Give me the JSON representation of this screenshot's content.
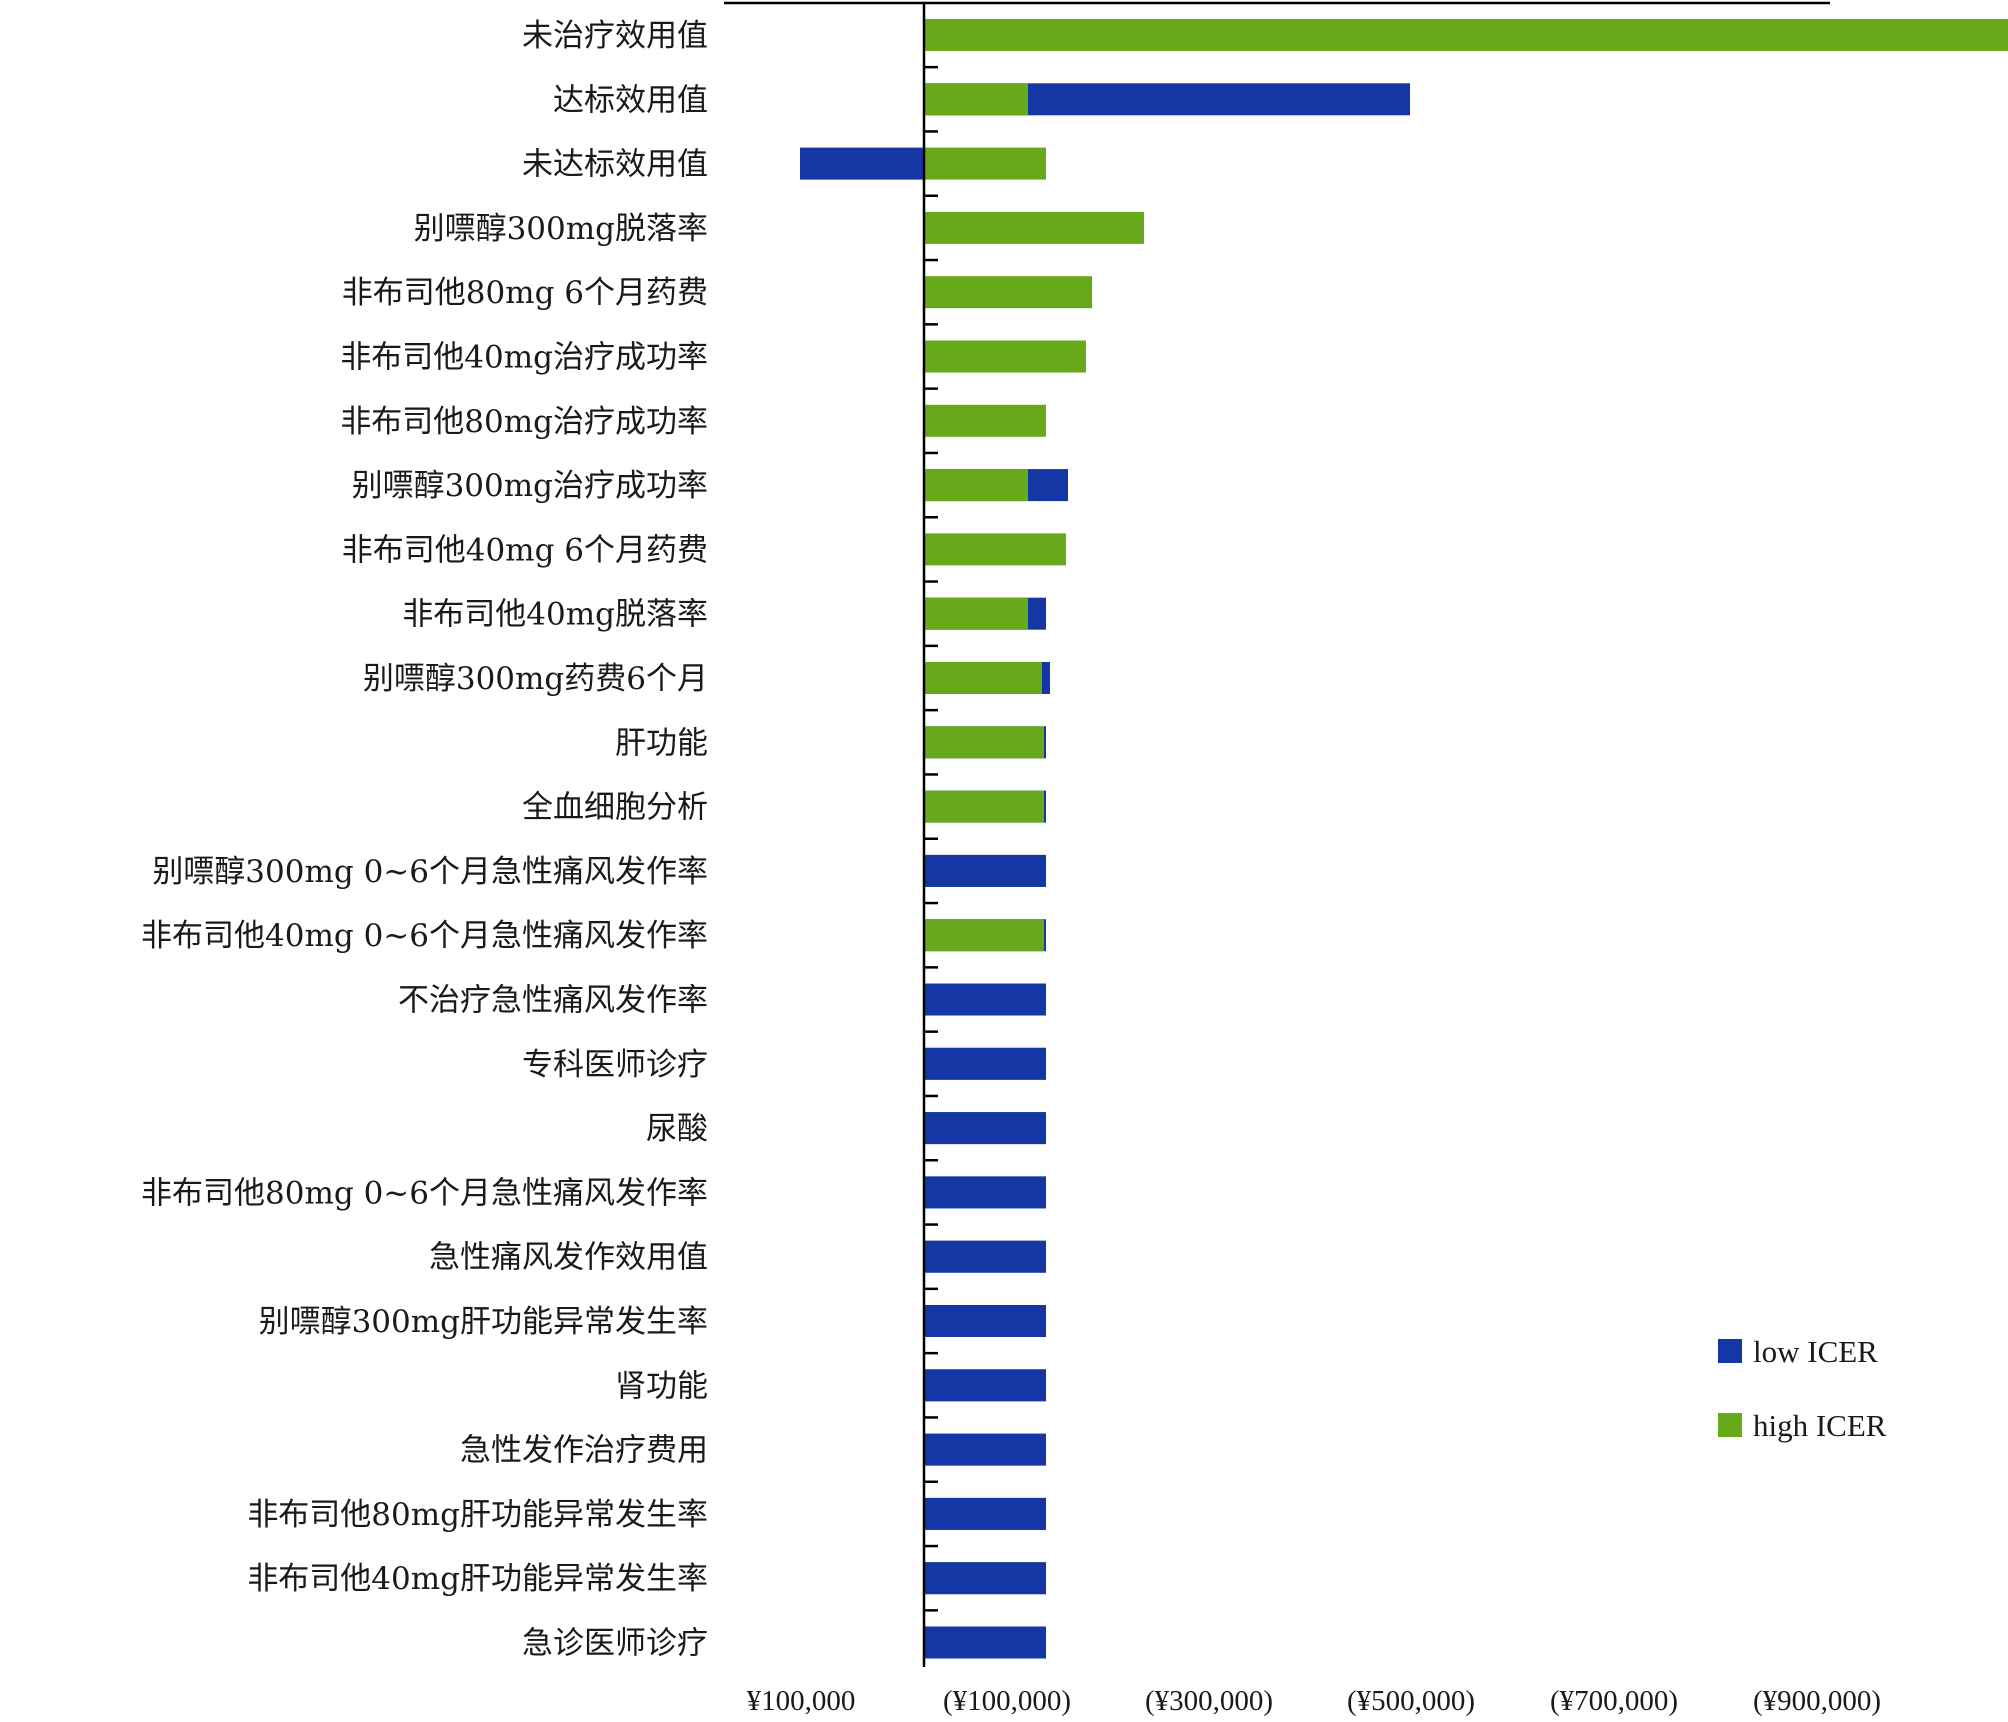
{
  "chart_data": {
    "type": "bar",
    "orientation": "horizontal",
    "stacked": false,
    "title": "",
    "xlabel": "",
    "ylabel": "",
    "baseline": 0,
    "xlim": [
      -150000,
      900000
    ],
    "x_ticks": [
      {
        "value": -100000,
        "label": "¥100,000"
      },
      {
        "value": 100000,
        "label": "(¥100,000)"
      },
      {
        "value": 300000,
        "label": "(¥300,000)"
      },
      {
        "value": 500000,
        "label": "(¥500,000)"
      },
      {
        "value": 700000,
        "label": "(¥700,000)"
      },
      {
        "value": 900000,
        "label": "(¥900,000)"
      }
    ],
    "categories": [
      "未治疗效用值",
      "达标效用值",
      "未达标效用值",
      "别嘌醇300mg脱落率",
      "非布司他80mg 6个月药费",
      "非布司他40mg治疗成功率",
      "非布司他80mg治疗成功率",
      "别嘌醇300mg治疗成功率",
      "非布司他40mg 6个月药费",
      "非布司他40mg脱落率",
      "别嘌醇300mg药费6个月",
      "肝功能",
      "全血细胞分析",
      "别嘌醇300mg 0~6个月急性痛风发作率",
      "非布司他40mg 0~6个月急性痛风发作率",
      "不治疗急性痛风发作率",
      "专科医师诊疗",
      "尿酸",
      "非布司他80mg 0~6个月急性痛风发作率",
      "急性痛风发作效用值",
      "别嘌醇300mg肝功能异常发生率",
      "肾功能",
      "急性发作治疗费用",
      "非布司他80mg肝功能异常发生率",
      "非布司他40mg肝功能异常发生率",
      "急诊医师诊疗"
    ],
    "series": [
      {
        "name": "low ICER",
        "color": "#1537a5",
        "values": [
          0,
          243000,
          -62000,
          0,
          0,
          0,
          0,
          72000,
          0,
          61000,
          63000,
          61000,
          61000,
          61000,
          61000,
          61000,
          61000,
          61000,
          61000,
          61000,
          61000,
          61000,
          61000,
          61000,
          61000,
          61000
        ]
      },
      {
        "name": "high ICER",
        "color": "#66aa1c",
        "values": [
          823000,
          52000,
          61000,
          110000,
          84000,
          81000,
          61000,
          52000,
          71000,
          52000,
          59000,
          60000,
          60000,
          61000,
          60000,
          61000,
          61000,
          61000,
          61000,
          61000,
          61000,
          61000,
          61000,
          61000,
          61000,
          61000
        ]
      }
    ],
    "legend": {
      "position": "bottom-right",
      "entries": [
        "low ICER",
        "high ICER"
      ]
    },
    "grid": false
  }
}
